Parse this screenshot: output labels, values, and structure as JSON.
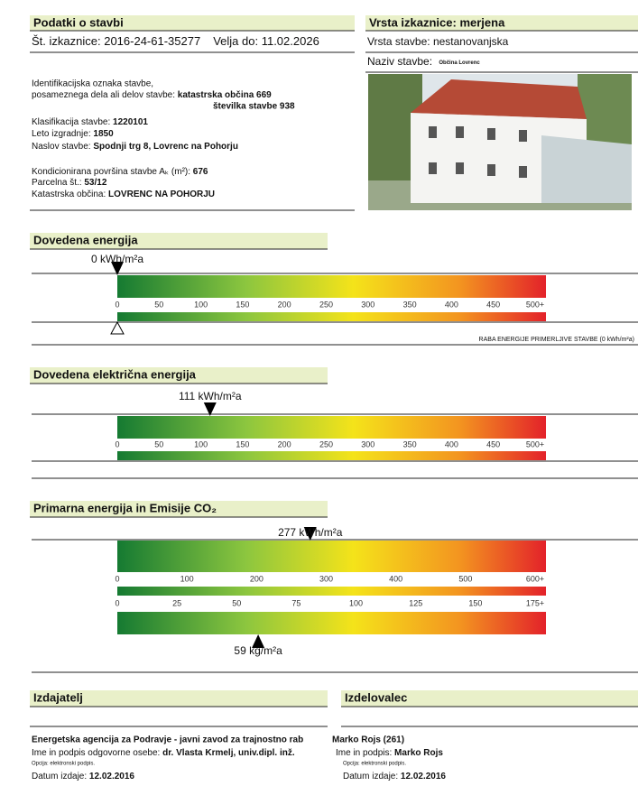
{
  "building": {
    "title": "Podatki o stavbi",
    "cert_label": "Št. izkaznice:",
    "cert_no": "2016-24-61-35277",
    "valid_label": "Velja do:",
    "valid_until": "11.02.2026",
    "id_label": [
      "Identifikacijska oznaka stavbe,",
      "posameznega dela ali delov stavbe:"
    ],
    "id_values": [
      "katastrska občina 669",
      "številka stavbe 938"
    ],
    "fields": [
      {
        "label": "Klasifikacija stavbe:",
        "value": "1220101"
      },
      {
        "label": "Leto izgradnje:",
        "value": "1850"
      },
      {
        "label": "Naslov stavbe:",
        "value": "Spodnji trg 8, Lovrenc na Pohorju"
      },
      {
        "label": "Kondicionirana površina stavbe Aₖ (m²):",
        "value": "676"
      },
      {
        "label": "Parcelna št.:",
        "value": "53/12"
      },
      {
        "label": "Katastrska občina:",
        "value": "LOVRENC NA POHORJU"
      }
    ]
  },
  "card": {
    "title": "Vrsta izkaznice: merjena",
    "type_label": "Vrsta stavbe:",
    "type": "nestanovanjska",
    "name_label": "Naziv stavbe:",
    "name": "Občina Lovrenc"
  },
  "scales": [
    {
      "title": "Dovedena energija",
      "axes": [
        {
          "ticks": [
            0,
            50,
            100,
            150,
            200,
            250,
            300,
            350,
            400,
            450,
            {
              "value": 500,
              "label": "500+"
            }
          ],
          "marker": {
            "value": 0,
            "label": "0 kWh/m²a"
          }
        }
      ],
      "comparison": {
        "value": 0,
        "label": "RABA ENERGIJE PRIMERLJIVE STAVBE (0 kWh/m²a)"
      }
    },
    {
      "title": "Dovedena električna energija",
      "axes": [
        {
          "ticks": [
            0,
            50,
            100,
            150,
            200,
            250,
            300,
            350,
            400,
            450,
            {
              "value": 500,
              "label": "500+"
            }
          ],
          "marker": {
            "value": 111,
            "label": "111 kWh/m²a"
          }
        }
      ]
    },
    {
      "title": "Primarna energija in Emisije CO₂",
      "axes": [
        {
          "ticks": [
            0,
            100,
            200,
            300,
            400,
            500,
            {
              "value": 600,
              "label": "600+"
            }
          ],
          "marker": {
            "value": 277,
            "label": "277 kWh/m²a"
          }
        },
        {
          "ticks": [
            0,
            25,
            50,
            75,
            100,
            125,
            150,
            {
              "value": 175,
              "label": "175+"
            }
          ],
          "marker": {
            "value": 59,
            "label": "59 kg/m²a"
          }
        }
      ]
    }
  ],
  "issuer": {
    "title": "Izdajatelj",
    "org": "Energetska agencija za Podravje - javni zavod za trajnostno rab",
    "person_label": "Ime in podpis odgovorne osebe:",
    "person": "dr. Vlasta Krmelj, univ.dipl. inž.",
    "note": "Opcija: elektronski podpis.",
    "date_label": "Datum izdaje:",
    "date": "12.02.2016"
  },
  "maker": {
    "title": "Izdelovalec",
    "org": "Marko Rojs (261)",
    "person_label": "Ime in podpis:",
    "person": "Marko Rojs",
    "note": "Opcija: elektronski podpis.",
    "date_label": "Datum izdaje:",
    "date": "12.02.2016"
  }
}
